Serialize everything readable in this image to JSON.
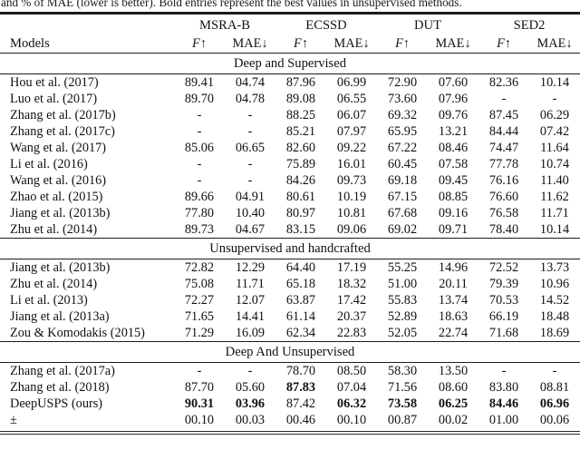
{
  "caption": "and % of MAE (lower is better). Bold entries represent the best values in unsupervised methods.",
  "table": {
    "models_header": "Models",
    "metrics": {
      "f_label": "F",
      "f_arrow": "↑",
      "mae_label": "MAE",
      "mae_arrow": "↓"
    },
    "groups": [
      "MSRA-B",
      "ECSSD",
      "DUT",
      "SED2"
    ],
    "sections": [
      {
        "title": "Deep and Supervised",
        "rows": [
          {
            "model": "Hou et al. (2017)",
            "values": [
              "89.41",
              "04.74",
              "87.96",
              "06.99",
              "72.90",
              "07.60",
              "82.36",
              "10.14"
            ],
            "bold": [
              0,
              0,
              0,
              0,
              0,
              0,
              0,
              0
            ]
          },
          {
            "model": "Luo et al. (2017)",
            "values": [
              "89.70",
              "04.78",
              "89.08",
              "06.55",
              "73.60",
              "07.96",
              "-",
              "-"
            ],
            "bold": [
              0,
              0,
              0,
              0,
              0,
              0,
              0,
              0
            ]
          },
          {
            "model": "Zhang et al. (2017b)",
            "values": [
              "-",
              "-",
              "88.25",
              "06.07",
              "69.32",
              "09.76",
              "87.45",
              "06.29"
            ],
            "bold": [
              0,
              0,
              0,
              0,
              0,
              0,
              0,
              0
            ]
          },
          {
            "model": "Zhang et al. (2017c)",
            "values": [
              "-",
              "-",
              "85.21",
              "07.97",
              "65.95",
              "13.21",
              "84.44",
              "07.42"
            ],
            "bold": [
              0,
              0,
              0,
              0,
              0,
              0,
              0,
              0
            ]
          },
          {
            "model": "Wang et al. (2017)",
            "values": [
              "85.06",
              "06.65",
              "82.60",
              "09.22",
              "67.22",
              "08.46",
              "74.47",
              "11.64"
            ],
            "bold": [
              0,
              0,
              0,
              0,
              0,
              0,
              0,
              0
            ]
          },
          {
            "model": "Li et al. (2016)",
            "values": [
              "-",
              "-",
              "75.89",
              "16.01",
              "60.45",
              "07.58",
              "77.78",
              "10.74"
            ],
            "bold": [
              0,
              0,
              0,
              0,
              0,
              0,
              0,
              0
            ]
          },
          {
            "model": "Wang et al. (2016)",
            "values": [
              "-",
              "-",
              "84.26",
              "09.73",
              "69.18",
              "09.45",
              "76.16",
              "11.40"
            ],
            "bold": [
              0,
              0,
              0,
              0,
              0,
              0,
              0,
              0
            ]
          },
          {
            "model": "Zhao et al. (2015)",
            "values": [
              "89.66",
              "04.91",
              "80.61",
              "10.19",
              "67.15",
              "08.85",
              "76.60",
              "11.62"
            ],
            "bold": [
              0,
              0,
              0,
              0,
              0,
              0,
              0,
              0
            ]
          },
          {
            "model": "Jiang et al. (2013b)",
            "values": [
              "77.80",
              "10.40",
              "80.97",
              "10.81",
              "67.68",
              "09.16",
              "76.58",
              "11.71"
            ],
            "bold": [
              0,
              0,
              0,
              0,
              0,
              0,
              0,
              0
            ]
          },
          {
            "model": "Zhu et al. (2014)",
            "values": [
              "89.73",
              "04.67",
              "83.15",
              "09.06",
              "69.02",
              "09.71",
              "78.40",
              "10.14"
            ],
            "bold": [
              0,
              0,
              0,
              0,
              0,
              0,
              0,
              0
            ]
          }
        ]
      },
      {
        "title": "Unsupervised and handcrafted",
        "rows": [
          {
            "model": "Jiang et al. (2013b)",
            "values": [
              "72.82",
              "12.29",
              "64.40",
              "17.19",
              "55.25",
              "14.96",
              "72.52",
              "13.73"
            ],
            "bold": [
              0,
              0,
              0,
              0,
              0,
              0,
              0,
              0
            ]
          },
          {
            "model": "Zhu et al. (2014)",
            "values": [
              "75.08",
              "11.71",
              "65.18",
              "18.32",
              "51.00",
              "20.11",
              "79.39",
              "10.96"
            ],
            "bold": [
              0,
              0,
              0,
              0,
              0,
              0,
              0,
              0
            ]
          },
          {
            "model": "Li et al. (2013)",
            "values": [
              "72.27",
              "12.07",
              "63.87",
              "17.42",
              "55.83",
              "13.74",
              "70.53",
              "14.52"
            ],
            "bold": [
              0,
              0,
              0,
              0,
              0,
              0,
              0,
              0
            ]
          },
          {
            "model": "Jiang et al. (2013a)",
            "values": [
              "71.65",
              "14.41",
              "61.14",
              "20.37",
              "52.89",
              "18.63",
              "66.19",
              "18.48"
            ],
            "bold": [
              0,
              0,
              0,
              0,
              0,
              0,
              0,
              0
            ]
          },
          {
            "model": "Zou & Komodakis (2015)",
            "values": [
              "71.29",
              "16.09",
              "62.34",
              "22.83",
              "52.05",
              "22.74",
              "71.68",
              "18.69"
            ],
            "bold": [
              0,
              0,
              0,
              0,
              0,
              0,
              0,
              0
            ]
          }
        ]
      },
      {
        "title": "Deep And Unsupervised",
        "rows": [
          {
            "model": "Zhang et al. (2017a)",
            "values": [
              "-",
              "-",
              "78.70",
              "08.50",
              "58.30",
              "13.50",
              "-",
              "-"
            ],
            "bold": [
              0,
              0,
              0,
              0,
              0,
              0,
              0,
              0
            ]
          },
          {
            "model": "Zhang et al. (2018)",
            "values": [
              "87.70",
              "05.60",
              "87.83",
              "07.04",
              "71.56",
              "08.60",
              "83.80",
              "08.81"
            ],
            "bold": [
              0,
              0,
              1,
              0,
              0,
              0,
              0,
              0
            ]
          },
          {
            "model": "DeepUSPS (ours)",
            "values": [
              "90.31",
              "03.96",
              "87.42",
              "06.32",
              "73.58",
              "06.25",
              "84.46",
              "06.96"
            ],
            "bold": [
              1,
              1,
              0,
              1,
              1,
              1,
              1,
              1
            ]
          },
          {
            "model": "±",
            "values": [
              "00.10",
              "00.03",
              "00.46",
              "00.10",
              "00.87",
              "00.02",
              "01.00",
              "00.06"
            ],
            "bold": [
              0,
              0,
              0,
              0,
              0,
              0,
              0,
              0
            ]
          }
        ]
      }
    ]
  }
}
